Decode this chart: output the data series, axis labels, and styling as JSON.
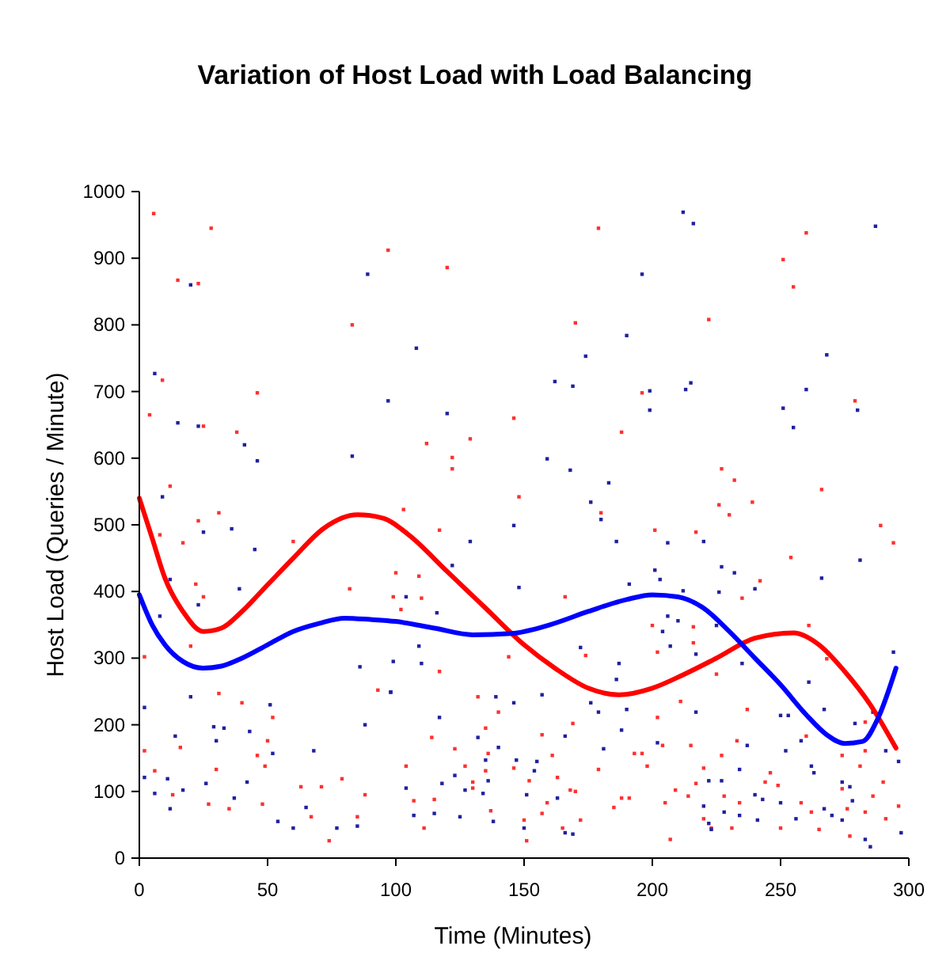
{
  "chart_data": {
    "type": "scatter",
    "title": "Variation of Host Load with Load Balancing",
    "xlabel": "Time (Minutes)",
    "ylabel": "Host Load (Queries / Minute)",
    "xlim": [
      0,
      300
    ],
    "xticks": [
      0,
      50,
      100,
      150,
      200,
      250,
      300
    ],
    "ylim": [
      0,
      1000
    ],
    "yticks": [
      0,
      100,
      200,
      300,
      400,
      500,
      600,
      700,
      800,
      900,
      1000
    ],
    "marker": "square",
    "series": [
      {
        "color": "#ff3030",
        "x": [
          5.6,
          28,
          97,
          15,
          23,
          83,
          9,
          46,
          4,
          25,
          38,
          12,
          31,
          23,
          179,
          120,
          170,
          196,
          146,
          188,
          112,
          129,
          122,
          122,
          148,
          103,
          180,
          260,
          251,
          255,
          222,
          279,
          227,
          232,
          266,
          239,
          226,
          230,
          289,
          8,
          17,
          60,
          22,
          25,
          82,
          20,
          2,
          31,
          40,
          52,
          2,
          16,
          46,
          50,
          6,
          30,
          49,
          13,
          27,
          35,
          48,
          63,
          71,
          67,
          79,
          85,
          74,
          88,
          93,
          117,
          100,
          109,
          99,
          110,
          102,
          117,
          144,
          166,
          174,
          132,
          140,
          135,
          169,
          157,
          114,
          123,
          136,
          161,
          104,
          127,
          146,
          135,
          130,
          152,
          163,
          179,
          193,
          107,
          115,
          130,
          137,
          159,
          168,
          170,
          185,
          157,
          150,
          111,
          165,
          172,
          151,
          188,
          191,
          201,
          217,
          294,
          254,
          242,
          235,
          200,
          216,
          261,
          202,
          216,
          225,
          268,
          211,
          237,
          202,
          283,
          260,
          204,
          215,
          233,
          227,
          274,
          283,
          196,
          198,
          220,
          246,
          281,
          217,
          244,
          249,
          290,
          209,
          228,
          274,
          286,
          205,
          214,
          234,
          258,
          276,
          283,
          296,
          220,
          262,
          223,
          231,
          250,
          207,
          265,
          277,
          291
        ],
        "values": [
          967,
          945,
          912,
          867,
          862,
          800,
          717,
          698,
          665,
          648,
          639,
          558,
          518,
          506,
          945,
          886,
          803,
          698,
          660,
          639,
          622,
          629,
          601,
          584,
          542,
          523,
          518,
          938,
          898,
          857,
          808,
          686,
          584,
          567,
          553,
          534,
          530,
          515,
          499,
          485,
          473,
          475,
          411,
          392,
          404,
          318,
          302,
          247,
          233,
          211,
          161,
          166,
          154,
          176,
          131,
          133,
          138,
          95,
          81,
          74,
          81,
          107,
          107,
          62,
          119,
          62,
          26,
          95,
          252,
          492,
          428,
          423,
          392,
          390,
          373,
          280,
          302,
          392,
          304,
          242,
          219,
          195,
          202,
          185,
          181,
          164,
          157,
          154,
          138,
          138,
          135,
          131,
          114,
          116,
          121,
          133,
          157,
          86,
          88,
          105,
          71,
          83,
          102,
          100,
          76,
          67,
          57,
          45,
          45,
          57,
          26,
          90,
          90,
          492,
          489,
          473,
          451,
          416,
          390,
          349,
          347,
          349,
          309,
          323,
          276,
          299,
          235,
          223,
          211,
          204,
          183,
          169,
          169,
          176,
          154,
          154,
          161,
          157,
          138,
          135,
          128,
          138,
          112,
          114,
          109,
          114,
          102,
          93,
          104,
          93,
          83,
          93,
          83,
          83,
          74,
          69,
          78,
          59,
          69,
          45,
          45,
          45,
          28,
          43,
          33,
          59
        ]
      },
      {
        "color": "#2020a0",
        "x": [
          20,
          89,
          6,
          15,
          23,
          41,
          46,
          83,
          97,
          9,
          196,
          108,
          190,
          174,
          162,
          169,
          120,
          159,
          168,
          183,
          176,
          180,
          146,
          212,
          216,
          287,
          268,
          215,
          199,
          213,
          199,
          260,
          251,
          280,
          255,
          25,
          36,
          45,
          12,
          23,
          39,
          8,
          2,
          20,
          51,
          29,
          43,
          14,
          30,
          33,
          52,
          2,
          11,
          26,
          42,
          6,
          17,
          37,
          54,
          60,
          65,
          77,
          85,
          68,
          88,
          86,
          98,
          12,
          129,
          122,
          148,
          104,
          116,
          109,
          99,
          110,
          98,
          139,
          146,
          117,
          132,
          140,
          135,
          147,
          155,
          123,
          118,
          136,
          154,
          127,
          134,
          151,
          163,
          104,
          115,
          107,
          125,
          138,
          150,
          166,
          169,
          157,
          176,
          179,
          166,
          181,
          188,
          190,
          186,
          191,
          187,
          186,
          172,
          206,
          220,
          281,
          201,
          203,
          227,
          232,
          266,
          240,
          226,
          212,
          206,
          210,
          225,
          204,
          207,
          217,
          294,
          235,
          261,
          267,
          217,
          250,
          253,
          279,
          286,
          258,
          202,
          237,
          252,
          291,
          296,
          234,
          262,
          222,
          227,
          274,
          277,
          263,
          240,
          243,
          250,
          278,
          228,
          234,
          241,
          220,
          256,
          267,
          270,
          274,
          283,
          285,
          297,
          222,
          223
        ],
        "values": [
          860,
          876,
          727,
          653,
          648,
          620,
          596,
          603,
          686,
          542,
          876,
          765,
          784,
          753,
          715,
          708,
          667,
          599,
          582,
          563,
          534,
          508,
          499,
          969,
          952,
          948,
          755,
          713,
          701,
          703,
          672,
          703,
          675,
          672,
          646,
          489,
          494,
          463,
          418,
          380,
          404,
          363,
          226,
          242,
          230,
          197,
          190,
          183,
          176,
          195,
          157,
          121,
          119,
          112,
          114,
          97,
          102,
          90,
          55,
          45,
          76,
          45,
          48,
          161,
          200,
          287,
          249,
          74,
          475,
          439,
          406,
          392,
          368,
          318,
          295,
          292,
          249,
          242,
          233,
          211,
          181,
          166,
          147,
          147,
          145,
          124,
          112,
          116,
          131,
          102,
          97,
          95,
          90,
          105,
          67,
          64,
          62,
          55,
          45,
          38,
          36,
          245,
          233,
          219,
          183,
          164,
          192,
          223,
          475,
          411,
          292,
          268,
          316,
          473,
          475,
          447,
          432,
          418,
          437,
          428,
          420,
          404,
          399,
          401,
          363,
          356,
          349,
          340,
          318,
          306,
          309,
          292,
          264,
          223,
          219,
          214,
          214,
          202,
          219,
          176,
          173,
          169,
          161,
          161,
          145,
          133,
          138,
          116,
          116,
          114,
          107,
          128,
          95,
          88,
          83,
          86,
          69,
          64,
          57,
          78,
          59,
          74,
          64,
          57,
          28,
          17,
          38,
          52,
          43
        ]
      },
      {
        "type": "line",
        "marker": "none",
        "color": "#ff0000",
        "x": [
          0,
          5,
          10,
          17,
          25,
          32,
          40,
          50,
          60,
          72,
          85,
          95,
          105,
          120,
          135,
          150,
          162,
          175,
          187,
          200,
          212,
          225,
          240,
          255,
          265,
          275,
          285,
          295
        ],
        "values": [
          540,
          480,
          420,
          370,
          340,
          345,
          370,
          410,
          450,
          495,
          515,
          510,
          485,
          430,
          375,
          320,
          285,
          255,
          245,
          255,
          275,
          300,
          330,
          338,
          320,
          280,
          230,
          165
        ]
      },
      {
        "type": "line",
        "marker": "none",
        "color": "#0000ff",
        "x": [
          0,
          5,
          10,
          17,
          25,
          32,
          40,
          50,
          60,
          70,
          80,
          90,
          100,
          115,
          130,
          145,
          160,
          175,
          190,
          200,
          210,
          220,
          230,
          240,
          250,
          260,
          268,
          275,
          282,
          288,
          295
        ],
        "values": [
          395,
          350,
          320,
          295,
          285,
          288,
          300,
          320,
          340,
          352,
          360,
          358,
          355,
          345,
          335,
          337,
          350,
          370,
          388,
          395,
          392,
          375,
          340,
          300,
          260,
          215,
          185,
          172,
          175,
          210,
          285
        ]
      }
    ]
  }
}
